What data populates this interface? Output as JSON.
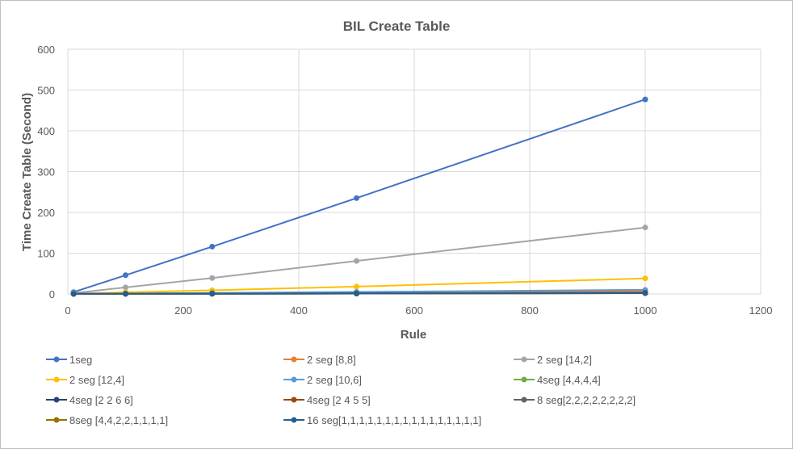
{
  "chart_data": {
    "type": "line",
    "title": "BIL Create Table",
    "xlabel": "Rule",
    "ylabel": "Time Create Table (Second)",
    "xlim": [
      0,
      1200
    ],
    "ylim": [
      0,
      600
    ],
    "x_ticks": [
      "0",
      "200",
      "400",
      "600",
      "800",
      "1000",
      "1200"
    ],
    "y_ticks": [
      "0",
      "100",
      "200",
      "300",
      "400",
      "500",
      "600"
    ],
    "grid": true,
    "legend_position": "bottom",
    "x": [
      10,
      100,
      250,
      500,
      1000
    ],
    "series": [
      {
        "name": "1seg",
        "color": "#4472c4",
        "values": [
          4.5,
          46,
          116,
          235,
          477
        ]
      },
      {
        "name": "2 seg [8,8]",
        "color": "#ed7d31",
        "values": [
          0.5,
          1,
          2,
          3.5,
          7
        ]
      },
      {
        "name": "2 seg [14,2]",
        "color": "#a5a5a5",
        "values": [
          2,
          16,
          39,
          81,
          163
        ]
      },
      {
        "name": "2 seg [12,4]",
        "color": "#ffc000",
        "values": [
          0.5,
          4,
          9,
          18,
          38
        ]
      },
      {
        "name": "2 seg [10,6]",
        "color": "#5b9bd5",
        "values": [
          0.5,
          1,
          2.5,
          5,
          10
        ]
      },
      {
        "name": "4seg [4,4,4,4]",
        "color": "#70ad47",
        "values": [
          0.3,
          0.4,
          0.8,
          1.5,
          3
        ]
      },
      {
        "name": "4seg [2 2 6 6]",
        "color": "#264478",
        "values": [
          0.3,
          0.4,
          0.8,
          1.5,
          3
        ]
      },
      {
        "name": "4seg [2 4 5 5]",
        "color": "#9e480e",
        "values": [
          0.3,
          0.4,
          0.8,
          1.5,
          3
        ]
      },
      {
        "name": "8 seg[2,2,2,2,2,2,2,2]",
        "color": "#636363",
        "values": [
          0.2,
          0.3,
          0.5,
          1,
          2
        ]
      },
      {
        "name": "8seg [4,4,2,2,1,1,1,1]",
        "color": "#997300",
        "values": [
          0.2,
          0.3,
          0.5,
          1,
          2
        ]
      },
      {
        "name": "16 seg[1,1,1,1,1,1,1,1,1,1,1,1,1,1,1,1]",
        "color": "#255e91",
        "values": [
          0.2,
          0.3,
          0.5,
          1,
          2
        ]
      }
    ]
  }
}
